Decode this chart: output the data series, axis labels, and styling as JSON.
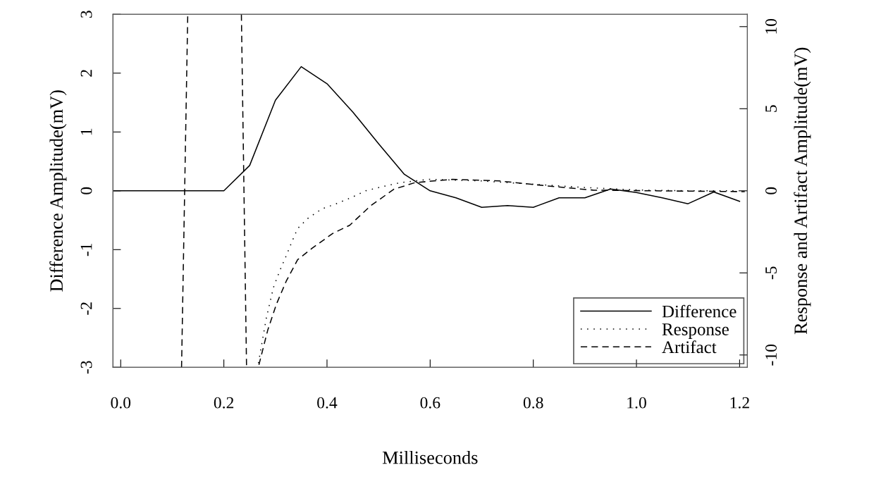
{
  "chart_data": {
    "type": "line",
    "xlabel": "Milliseconds",
    "ylabel": "Difference Amplitude(mV)",
    "y2label": "Response and Artifact Amplitude(mV)",
    "xlim": [
      -0.015,
      1.215
    ],
    "xticks": [
      {
        "value": 0,
        "label": "0.0"
      },
      0.2,
      0.4,
      0.6,
      0.8,
      {
        "value": 1,
        "label": "1.0"
      },
      1.2
    ],
    "ylim": [
      -3,
      3
    ],
    "yticks": [
      -3,
      -2,
      -1,
      0,
      1,
      2,
      3
    ],
    "y2lim": [
      -10.75,
      10.75
    ],
    "y2ticks": [
      -10,
      -5,
      0,
      5,
      10
    ],
    "legend": "bottom right",
    "grid": false,
    "series": [
      {
        "name": "Difference",
        "color": "#000000",
        "line_style": "solid",
        "x": [
          -0.015,
          0.2,
          0.25,
          0.3,
          0.35,
          0.4,
          0.45,
          0.5,
          0.55,
          0.6,
          0.65,
          0.7,
          0.75,
          0.8,
          0.85,
          0.9,
          0.95,
          1.0,
          1.05,
          1.1,
          1.15,
          1.2
        ],
        "values": [
          0,
          0,
          0.43,
          1.54,
          2.11,
          1.82,
          1.34,
          0.8,
          0.28,
          0.0,
          -0.12,
          -0.28,
          -0.25,
          -0.28,
          -0.12,
          -0.12,
          0.03,
          -0.03,
          -0.12,
          -0.22,
          -0.02,
          -0.18
        ]
      },
      {
        "name": "Response",
        "color": "#000000",
        "line_style": "dotted",
        "axis": "y2",
        "x": [
          0.267,
          0.282,
          0.296,
          0.308,
          0.319,
          0.332,
          0.343,
          0.362,
          0.39,
          0.417,
          0.448,
          0.475,
          0.507,
          0.543,
          0.598,
          0.7,
          0.8,
          0.9,
          1.0,
          1.1,
          1.2
        ],
        "values": [
          -10.5,
          -7.8,
          -5.9,
          -4.9,
          -4.1,
          -3.1,
          -2.3,
          -1.7,
          -1.1,
          -0.8,
          -0.4,
          0.0,
          0.25,
          0.5,
          0.7,
          0.6,
          0.4,
          0.2,
          0.05,
          0.0,
          0.0
        ]
      },
      {
        "name": "Artifact",
        "color": "#000000",
        "line_style": "dashed",
        "axis": "y2",
        "x": [
          0.118,
          0.13,
          0.18,
          0.234,
          0.244,
          0.255,
          0.268,
          0.285,
          0.302,
          0.321,
          0.343,
          0.371,
          0.411,
          0.444,
          0.485,
          0.53,
          0.571,
          0.643,
          0.734,
          0.826,
          0.916,
          1.03,
          1.21
        ],
        "values": [
          -10.75,
          10.75,
          null,
          10.75,
          -10.75,
          null,
          -10.6,
          -8.5,
          -6.9,
          -5.5,
          -4.2,
          -3.5,
          -2.6,
          -2.1,
          -0.9,
          0.1,
          0.5,
          0.7,
          0.6,
          0.3,
          0.04,
          0.0,
          -0.05
        ]
      }
    ]
  }
}
